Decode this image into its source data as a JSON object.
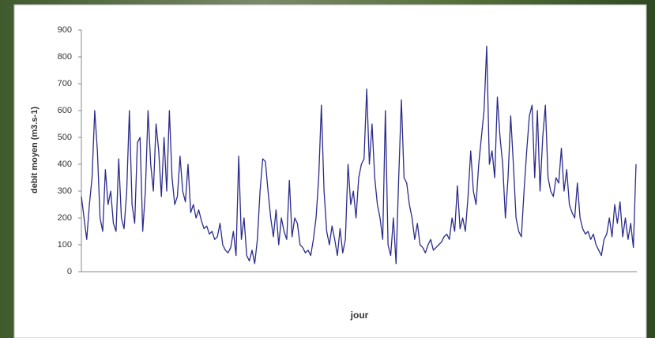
{
  "chart_data": {
    "type": "line",
    "y_label": "debit moyen (m3.s-1)",
    "x_label": "jour",
    "ylim": [
      0,
      900
    ],
    "yticks": [
      0,
      100,
      200,
      300,
      400,
      500,
      600,
      700,
      800,
      900
    ],
    "color": "#2b2b8c",
    "values": [
      280,
      200,
      120,
      250,
      350,
      600,
      450,
      200,
      150,
      380,
      250,
      300,
      180,
      150,
      420,
      200,
      160,
      300,
      600,
      250,
      180,
      480,
      500,
      150,
      300,
      600,
      400,
      300,
      550,
      450,
      280,
      500,
      300,
      600,
      350,
      250,
      280,
      430,
      300,
      260,
      400,
      220,
      250,
      200,
      230,
      190,
      160,
      170,
      140,
      150,
      120,
      130,
      180,
      100,
      80,
      70,
      90,
      150,
      60,
      430,
      120,
      200,
      60,
      40,
      80,
      30,
      120,
      300,
      420,
      410,
      300,
      200,
      130,
      230,
      100,
      200,
      150,
      120,
      340,
      130,
      200,
      180,
      100,
      90,
      70,
      80,
      60,
      120,
      200,
      350,
      620,
      300,
      150,
      100,
      170,
      120,
      60,
      160,
      70,
      120,
      400,
      250,
      300,
      200,
      350,
      400,
      420,
      680,
      400,
      550,
      350,
      250,
      200,
      120,
      600,
      100,
      60,
      200,
      30,
      350,
      640,
      350,
      330,
      250,
      200,
      120,
      180,
      100,
      90,
      70,
      100,
      120,
      80,
      90,
      100,
      110,
      130,
      140,
      120,
      200,
      150,
      320,
      160,
      200,
      150,
      280,
      450,
      300,
      250,
      400,
      500,
      600,
      840,
      400,
      450,
      350,
      650,
      500,
      400,
      200,
      350,
      580,
      400,
      200,
      150,
      130,
      300,
      450,
      580,
      620,
      350,
      600,
      300,
      500,
      620,
      350,
      300,
      280,
      350,
      330,
      460,
      300,
      380,
      250,
      220,
      200,
      330,
      200,
      160,
      140,
      150,
      120,
      140,
      100,
      80,
      60,
      120,
      140,
      200,
      130,
      250,
      180,
      260,
      130,
      200,
      120,
      180,
      90,
      400
    ]
  }
}
